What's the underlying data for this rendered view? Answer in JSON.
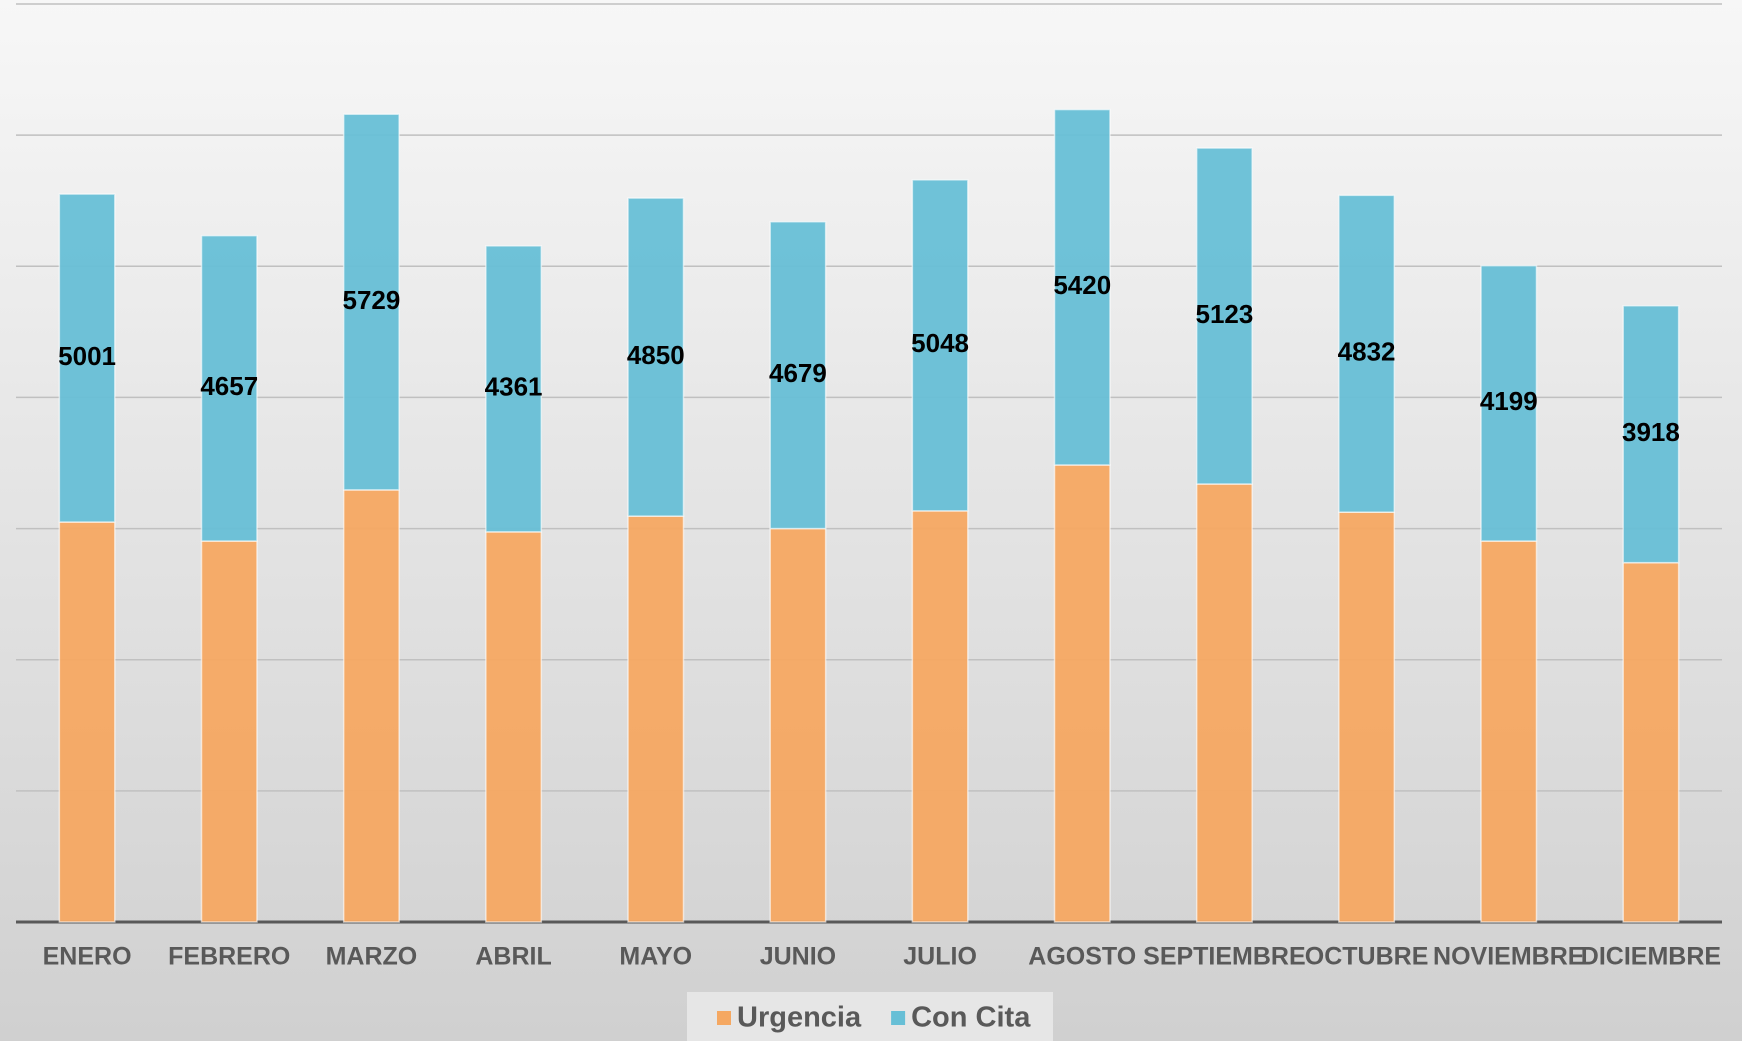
{
  "chart_data": {
    "type": "bar",
    "stacked": true,
    "categories": [
      "ENERO",
      "FEBRERO",
      "MARZO",
      "ABRIL",
      "MAYO",
      "JUNIO",
      "JULIO",
      "AGOSTO",
      "SEPTIEMBRE",
      "OCTUBRE",
      "NOVIEMBRE",
      "DICIEMBRE"
    ],
    "series": [
      {
        "name": "Urgencia",
        "color": "#f5a862",
        "values": [
          6100,
          5810,
          6590,
          5950,
          6190,
          6000,
          6270,
          6970,
          6680,
          6250,
          5810,
          5480
        ]
      },
      {
        "name": "Con Cita",
        "color": "#67bfd6",
        "values": [
          5001,
          4657,
          5729,
          4361,
          4850,
          4679,
          5048,
          5420,
          5123,
          4832,
          4199,
          3918
        ],
        "data_labels": true
      }
    ],
    "ylim": [
      0,
      14000
    ],
    "yticks": [
      0,
      2000,
      4000,
      6000,
      8000,
      10000,
      12000,
      14000
    ],
    "grid": true,
    "legend": "bottom"
  }
}
